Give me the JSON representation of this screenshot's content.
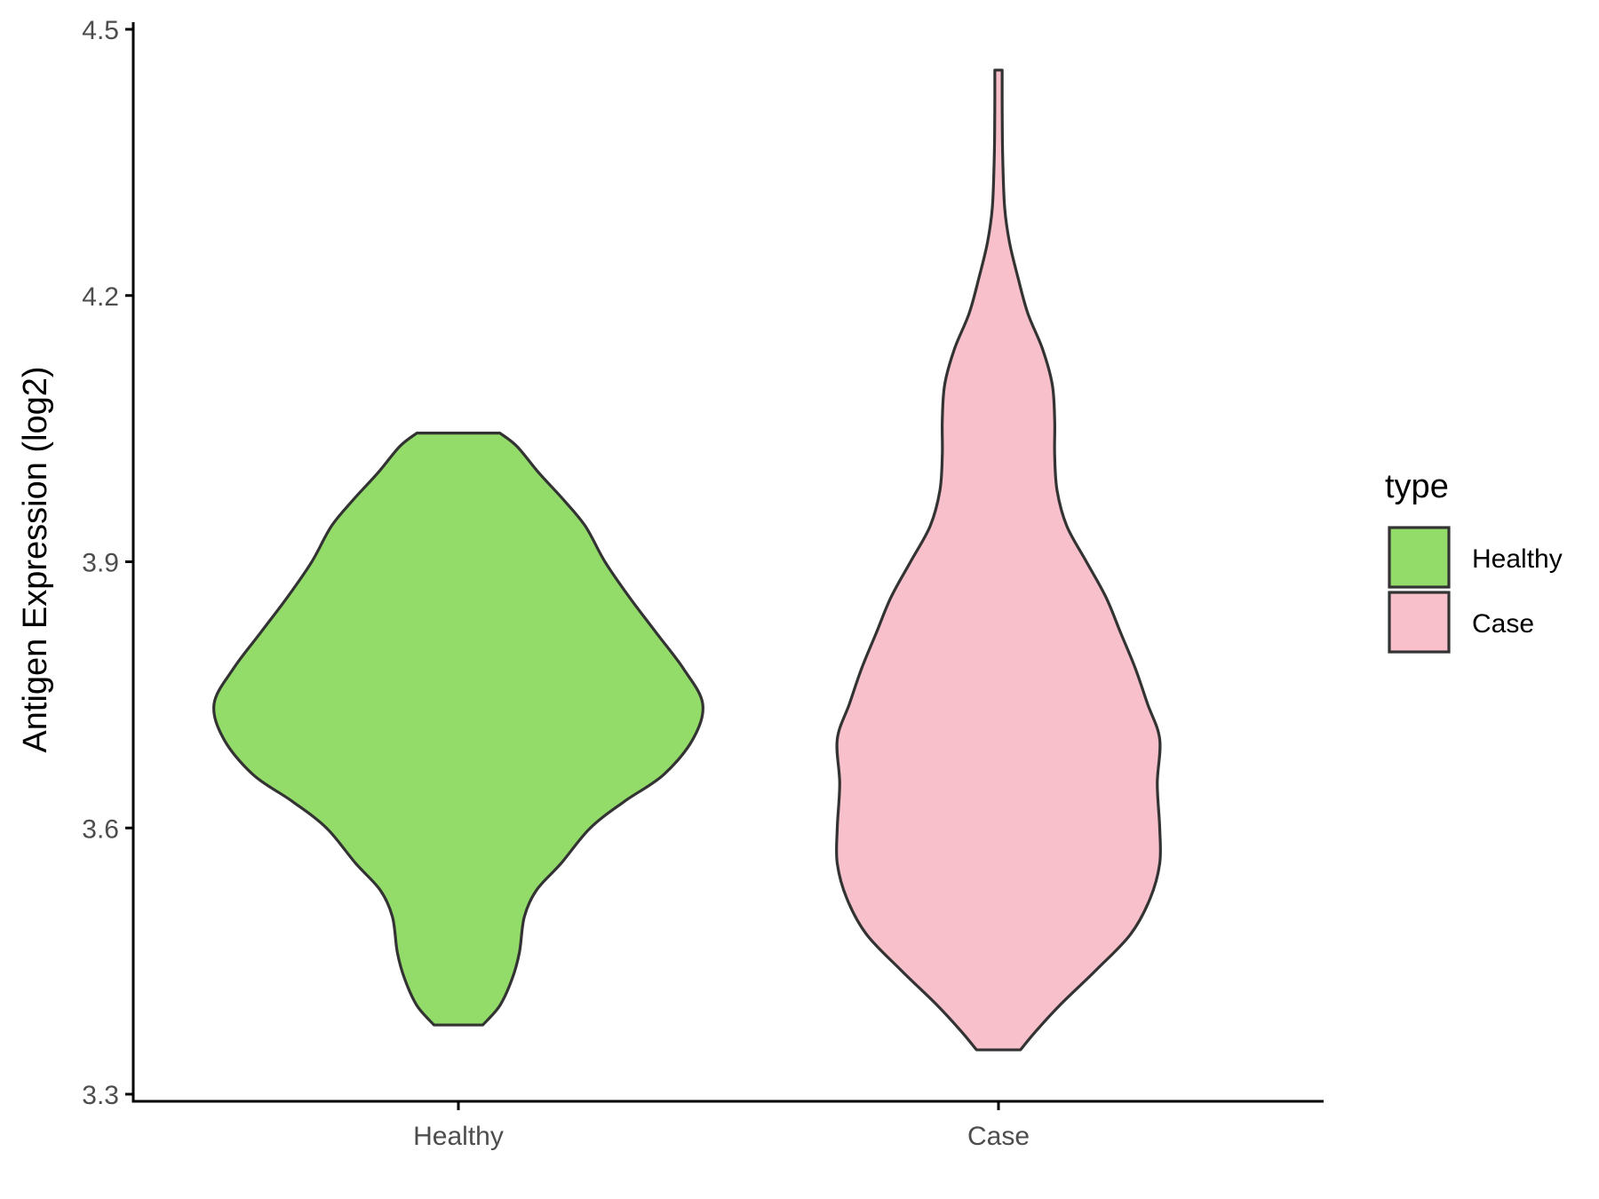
{
  "chart_data": {
    "type": "violin",
    "xlabel": "",
    "ylabel": "Antigen Expression (log2)",
    "ylim": [
      3.3,
      4.5
    ],
    "yticks": [
      "3.3",
      "3.6",
      "3.9",
      "4.2",
      "4.5"
    ],
    "categories": [
      "Healthy",
      "Case"
    ],
    "grid": false,
    "legend": {
      "title": "type",
      "position": "right",
      "entries": [
        {
          "label": "Healthy",
          "color": "#93dc6a"
        },
        {
          "label": "Case",
          "color": "#f7c0cb"
        }
      ]
    },
    "series": [
      {
        "category": "Healthy",
        "color": "#93dc6a",
        "min": 3.378,
        "max": 4.045,
        "profile": [
          [
            3.378,
            0.1
          ],
          [
            3.4,
            0.17
          ],
          [
            3.43,
            0.22
          ],
          [
            3.46,
            0.25
          ],
          [
            3.5,
            0.27
          ],
          [
            3.53,
            0.32
          ],
          [
            3.56,
            0.42
          ],
          [
            3.6,
            0.54
          ],
          [
            3.63,
            0.68
          ],
          [
            3.66,
            0.84
          ],
          [
            3.7,
            0.96
          ],
          [
            3.74,
            1.0
          ],
          [
            3.78,
            0.92
          ],
          [
            3.82,
            0.81
          ],
          [
            3.86,
            0.7
          ],
          [
            3.9,
            0.6
          ],
          [
            3.94,
            0.52
          ],
          [
            3.97,
            0.43
          ],
          [
            4.0,
            0.33
          ],
          [
            4.03,
            0.24
          ],
          [
            4.045,
            0.17
          ]
        ]
      },
      {
        "category": "Case",
        "color": "#f7c0cb",
        "min": 3.35,
        "max": 4.454,
        "profile": [
          [
            3.35,
            0.09
          ],
          [
            3.37,
            0.15
          ],
          [
            3.4,
            0.25
          ],
          [
            3.44,
            0.4
          ],
          [
            3.48,
            0.54
          ],
          [
            3.52,
            0.62
          ],
          [
            3.56,
            0.66
          ],
          [
            3.6,
            0.66
          ],
          [
            3.65,
            0.65
          ],
          [
            3.7,
            0.66
          ],
          [
            3.74,
            0.61
          ],
          [
            3.78,
            0.56
          ],
          [
            3.82,
            0.5
          ],
          [
            3.86,
            0.44
          ],
          [
            3.9,
            0.36
          ],
          [
            3.94,
            0.28
          ],
          [
            3.98,
            0.24
          ],
          [
            4.02,
            0.23
          ],
          [
            4.06,
            0.23
          ],
          [
            4.1,
            0.22
          ],
          [
            4.14,
            0.18
          ],
          [
            4.18,
            0.12
          ],
          [
            4.22,
            0.08
          ],
          [
            4.26,
            0.045
          ],
          [
            4.3,
            0.025
          ],
          [
            4.36,
            0.017
          ],
          [
            4.42,
            0.015
          ],
          [
            4.454,
            0.015
          ]
        ]
      }
    ]
  }
}
